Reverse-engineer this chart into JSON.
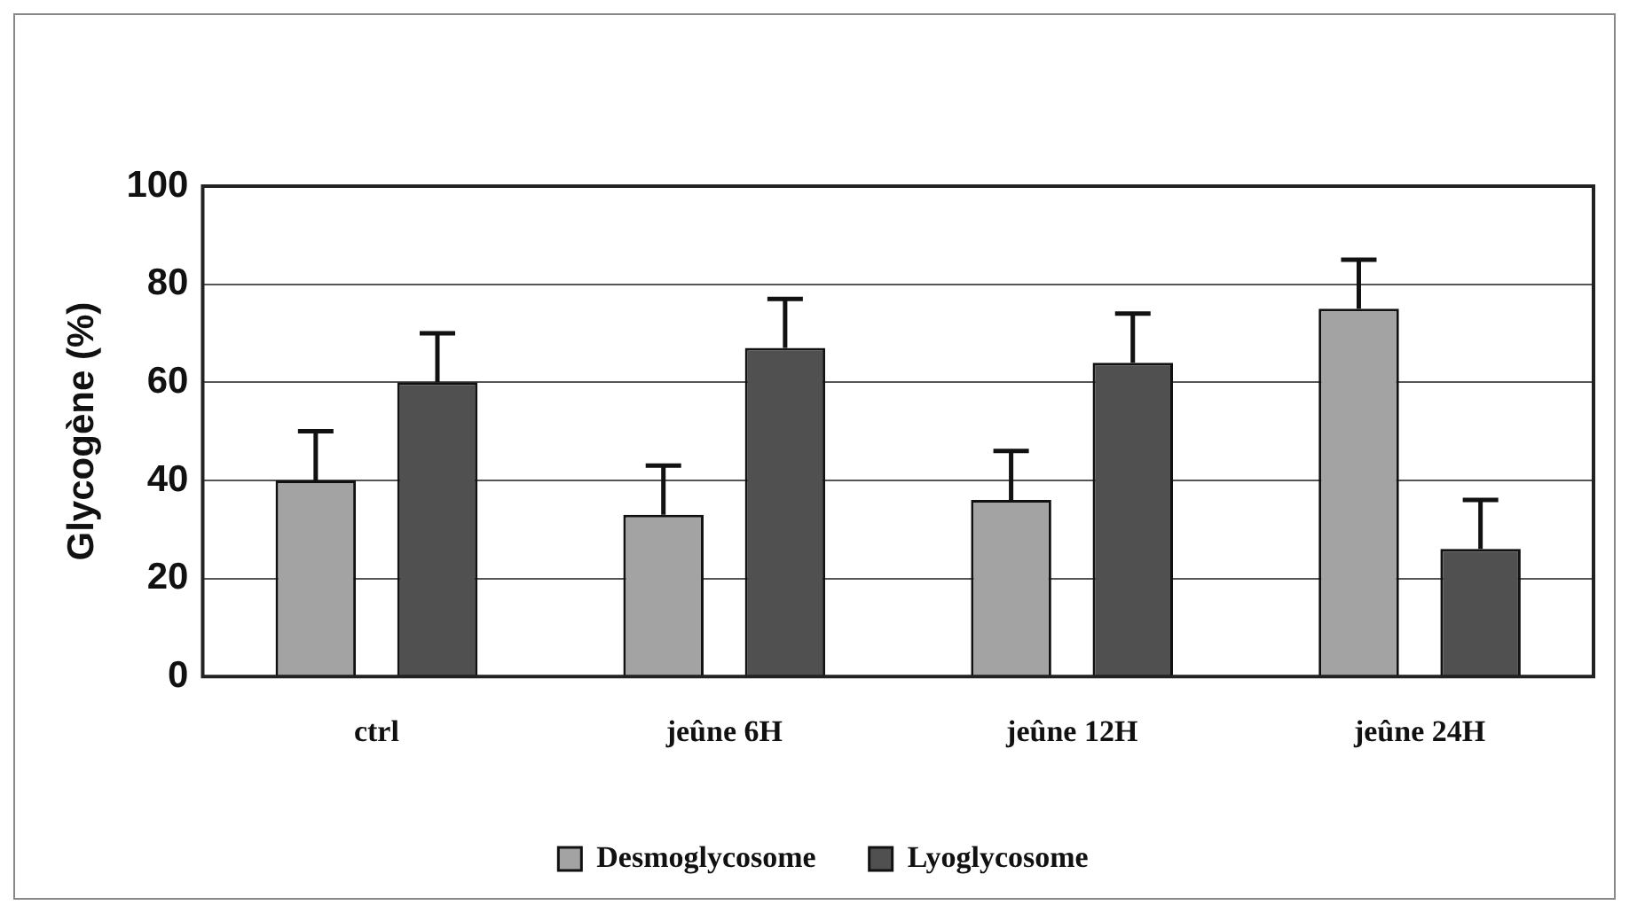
{
  "chart_data": {
    "type": "bar",
    "ylabel": "Glycogène (%)",
    "categories": [
      "ctrl",
      "jeûne 6H",
      "jeûne 12H",
      "jeûne 24H"
    ],
    "series": [
      {
        "name": "Desmoglycosome",
        "color": "#a3a3a3",
        "values": [
          40,
          33,
          36,
          75
        ],
        "errors": [
          [
            40,
            50
          ],
          [
            33,
            43
          ],
          [
            36,
            46
          ],
          [
            75,
            85
          ]
        ]
      },
      {
        "name": "Lyoglycosome",
        "color": "#505050",
        "values": [
          60,
          67,
          64,
          26
        ],
        "errors": [
          [
            60,
            70
          ],
          [
            67,
            77
          ],
          [
            64,
            74
          ],
          [
            26,
            36
          ]
        ]
      }
    ],
    "ylim": [
      0,
      100
    ],
    "yticks": [
      0,
      20,
      40,
      60,
      80,
      100
    ],
    "grid": "y",
    "legend": "bottom"
  }
}
